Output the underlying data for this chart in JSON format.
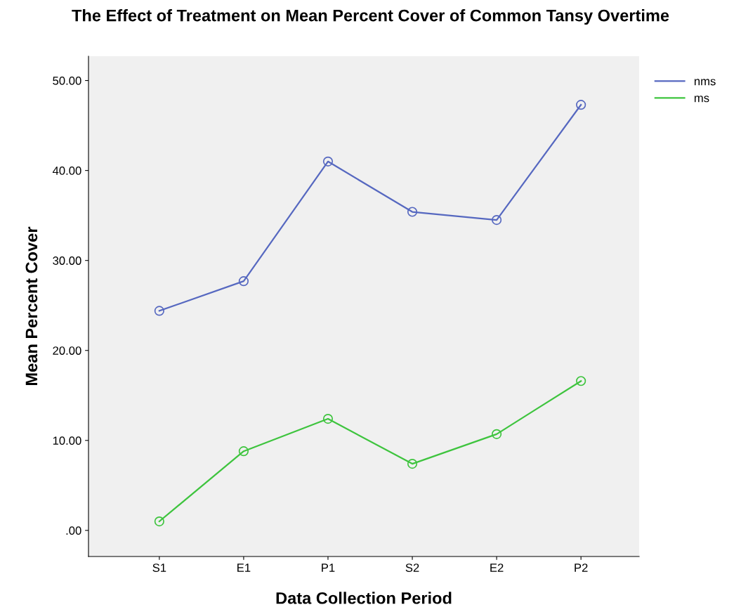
{
  "chart_data": {
    "type": "line",
    "title": "The Effect of Treatment on Mean Percent Cover of Common Tansy Overtime",
    "xlabel": "Data Collection Period",
    "ylabel": "Mean Percent Cover",
    "categories": [
      "S1",
      "E1",
      "P1",
      "S2",
      "E2",
      "P2"
    ],
    "series": [
      {
        "name": "nms",
        "color": "#5668c0",
        "values": [
          24.4,
          27.7,
          41.0,
          35.4,
          34.5,
          47.3
        ]
      },
      {
        "name": "ms",
        "color": "#3ec43e",
        "values": [
          1.0,
          8.8,
          12.4,
          7.4,
          10.7,
          16.6
        ]
      }
    ],
    "ylim": [
      -2.9,
      52.7
    ],
    "yticks": [
      {
        "value": 0,
        "label": ".00"
      },
      {
        "value": 10,
        "label": "10.00"
      },
      {
        "value": 20,
        "label": "20.00"
      },
      {
        "value": 30,
        "label": "30.00"
      },
      {
        "value": 40,
        "label": "40.00"
      },
      {
        "value": 50,
        "label": "50.00"
      }
    ],
    "marker": "circle",
    "line_style": "solid",
    "grid": false,
    "legend": "top right"
  }
}
